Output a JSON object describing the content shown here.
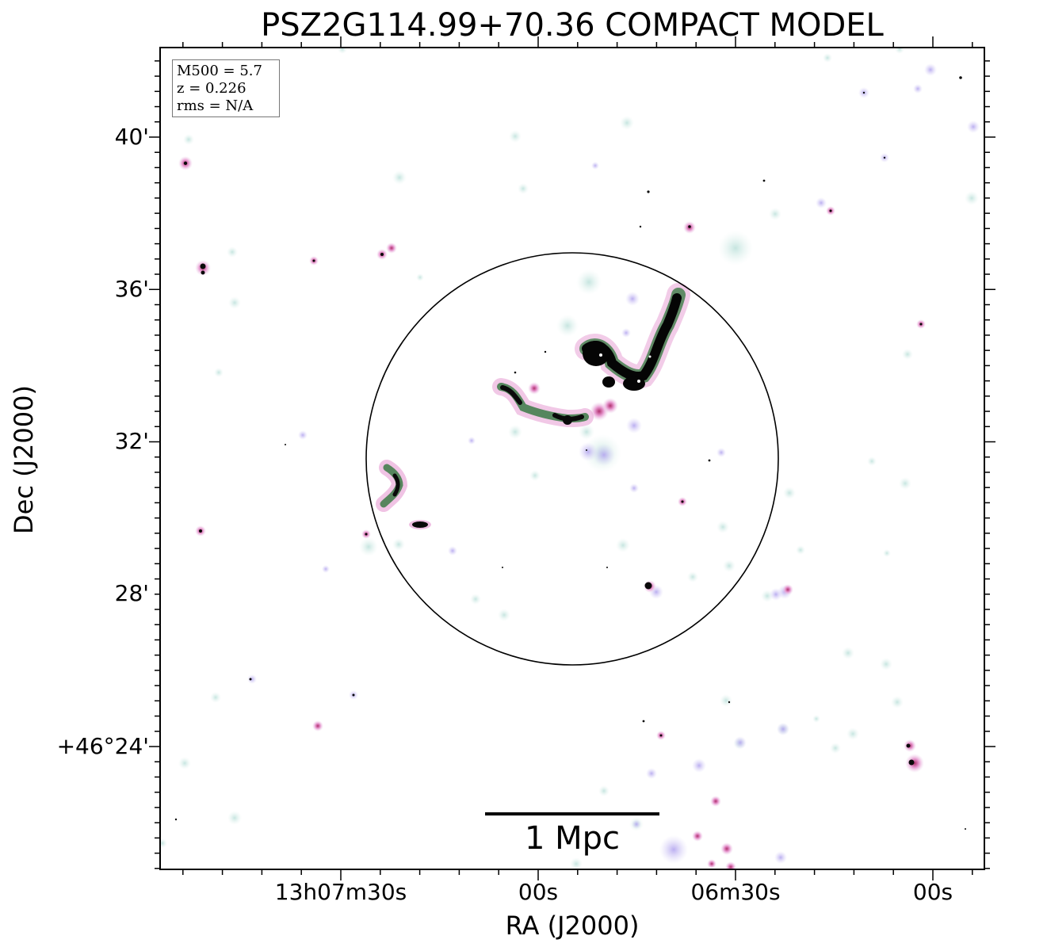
{
  "title": "PSZ2G114.99+70.36 COMPACT MODEL",
  "axes": {
    "xlabel": "RA (J2000)",
    "ylabel": "Dec (J2000)",
    "x_ticks": [
      "13h07m30s",
      "00s",
      "06m30s",
      "00s"
    ],
    "y_ticks": [
      "40'",
      "36'",
      "32'",
      "28'",
      "+46°24'"
    ]
  },
  "info": {
    "m500": "M500 = 5.7",
    "z": "z = 0.226",
    "rms": "rms = N/A"
  },
  "scale_bar": {
    "label": "1 Mpc"
  },
  "colors": {
    "faint_halo": "#cfe9e4",
    "lavender": "#c9bff0",
    "pink": "#e9a6d6",
    "green": "#2f6f3a",
    "core": "#000000"
  }
}
